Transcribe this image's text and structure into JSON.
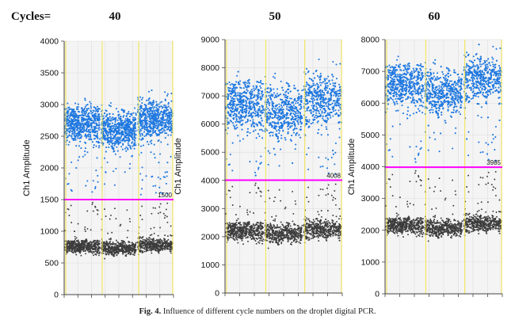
{
  "header": {
    "cycles_label": "Cycles="
  },
  "caption": {
    "fig_label": "Fig. 4.",
    "text": "Influence of different cycle numbers on the droplet digital PCR."
  },
  "colors": {
    "positive": "#1f78e0",
    "negative": "#3c3c3c",
    "threshold": "#ff00ff",
    "well_divider": "#f2e24a",
    "plot_bg": "#f4f4f4",
    "grid": "#dddddd"
  },
  "chart_data": [
    {
      "type": "scatter",
      "title": "40",
      "ylabel": "Ch1 Amplitude",
      "ylim": [
        0,
        4000
      ],
      "yticks": [
        "0",
        "500",
        "1000",
        "1500",
        "2000",
        "2500",
        "3000",
        "3500",
        "4000"
      ],
      "threshold": 1500,
      "threshold_label": "1500",
      "wells": 3,
      "series": [
        {
          "cluster": "positive",
          "center": 2700,
          "spread": 380
        },
        {
          "cluster": "negative",
          "center": 760,
          "spread": 140
        }
      ]
    },
    {
      "type": "scatter",
      "title": "50",
      "ylabel": "Ch1 Amplitude",
      "ylim": [
        0,
        9000
      ],
      "yticks": [
        "0",
        "1000",
        "2000",
        "3000",
        "4000",
        "5000",
        "6000",
        "7000",
        "8000",
        "9000"
      ],
      "threshold": 4008,
      "threshold_label": "4008",
      "wells": 3,
      "series": [
        {
          "cluster": "positive",
          "center": 6700,
          "spread": 1200
        },
        {
          "cluster": "negative",
          "center": 2200,
          "spread": 450
        }
      ]
    },
    {
      "type": "scatter",
      "title": "60",
      "ylabel": "Ch1 Amplitude",
      "ylim": [
        0,
        8000
      ],
      "yticks": [
        "0",
        "1000",
        "2000",
        "3000",
        "4000",
        "5000",
        "6000",
        "7000",
        "8000"
      ],
      "threshold": 3985,
      "threshold_label": "3985",
      "wells": 3,
      "series": [
        {
          "cluster": "positive",
          "center": 6600,
          "spread": 900
        },
        {
          "cluster": "negative",
          "center": 2150,
          "spread": 350
        }
      ]
    }
  ]
}
